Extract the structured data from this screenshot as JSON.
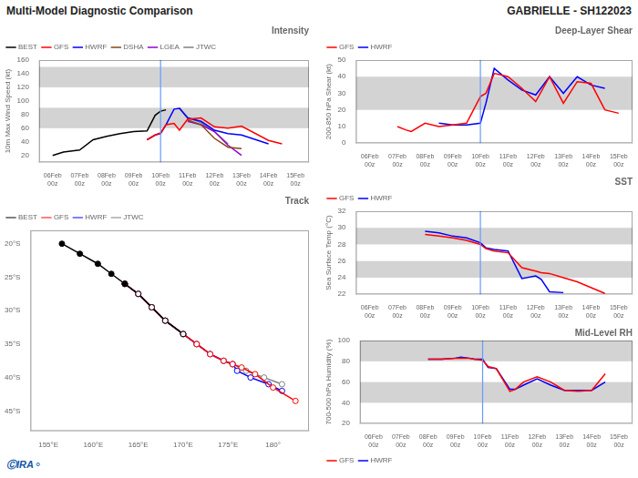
{
  "title": "Multi-Model Diagnostic Comparison",
  "subtitle": "GABRIELLE - SH122023",
  "annotations": [
    {
      "text": "ⒸIRA⚬"
    }
  ],
  "chart_data": [
    {
      "type": "line",
      "title": "Intensity",
      "y_label": "10m Max Wind Speed (kt)",
      "x": [
        0,
        0.4,
        0.8,
        1.0,
        1.5,
        2.0,
        2.5,
        3.0,
        3.5,
        3.8,
        4.0,
        4.2,
        4.5,
        4.7,
        5.0,
        5.5,
        6.0,
        6.5,
        7.0,
        8.0,
        8.5
      ],
      "xlim": [
        -0.5,
        9.5
      ],
      "xticks": [
        {
          "value": 0,
          "label": "06Feb\n00z"
        },
        {
          "value": 1,
          "label": "07Feb\n00z"
        },
        {
          "value": 2,
          "label": "08Feb\n00z"
        },
        {
          "value": 3,
          "label": "09Feb\n00z"
        },
        {
          "value": 4,
          "label": "10Feb\n00z"
        },
        {
          "value": 5,
          "label": "11Feb\n00z"
        },
        {
          "value": 6,
          "label": "12Feb\n00z"
        },
        {
          "value": 7,
          "label": "13Feb\n00z"
        },
        {
          "value": 8,
          "label": "14Feb\n00z"
        },
        {
          "value": 9,
          "label": "15Feb\n00z"
        }
      ],
      "ylim": [
        10,
        160
      ],
      "yticks": [
        20,
        40,
        60,
        80,
        100,
        120,
        140,
        160
      ],
      "grid": false,
      "legend": "upper left",
      "annotations": [
        {
          "type": "band",
          "y": [
            60,
            90
          ],
          "color": "#d3d3d3"
        },
        {
          "type": "band",
          "y": [
            120,
            150
          ],
          "color": "#d3d3d3"
        },
        {
          "type": "vline",
          "x": 4,
          "color": "#6699ff"
        }
      ],
      "series": [
        {
          "name": "BEST",
          "color": "#000000",
          "values": [
            20,
            25,
            27,
            28,
            43,
            48,
            52,
            55,
            56,
            79,
            85,
            87,
            null,
            null,
            null,
            null,
            null,
            null,
            null,
            null,
            null
          ]
        },
        {
          "name": "GFS",
          "color": "#ff0000",
          "values": [
            null,
            null,
            null,
            null,
            null,
            null,
            null,
            null,
            43,
            50,
            53,
            65,
            67,
            57,
            73,
            75,
            62,
            60,
            63,
            42,
            37
          ]
        },
        {
          "name": "HWRF",
          "color": "#0000ff",
          "values": [
            null,
            null,
            null,
            null,
            null,
            null,
            null,
            null,
            43,
            50,
            52,
            65,
            88,
            89,
            75,
            70,
            57,
            52,
            50,
            37,
            null
          ]
        },
        {
          "name": "DSHA",
          "color": "#8B4513",
          "values": [
            null,
            null,
            null,
            null,
            null,
            null,
            null,
            null,
            null,
            null,
            null,
            null,
            null,
            null,
            72,
            65,
            45,
            32,
            30,
            null,
            null
          ]
        },
        {
          "name": "LGEA",
          "color": "#9400D3",
          "values": [
            null,
            null,
            null,
            null,
            null,
            null,
            null,
            null,
            null,
            null,
            null,
            null,
            null,
            null,
            70,
            65,
            55,
            35,
            20,
            null,
            null
          ]
        },
        {
          "name": "JTWC",
          "color": "#808080",
          "values": [
            null,
            null,
            null,
            null,
            null,
            null,
            null,
            null,
            null,
            null,
            null,
            null,
            null,
            90,
            76,
            68,
            55,
            37,
            null,
            null,
            null
          ]
        }
      ]
    },
    {
      "type": "scatter",
      "title": "Track",
      "xlim": [
        153,
        184
      ],
      "xticks": [
        {
          "value": 155,
          "label": "155°E"
        },
        {
          "value": 160,
          "label": "160°E"
        },
        {
          "value": 165,
          "label": "165°E"
        },
        {
          "value": 170,
          "label": "170°E"
        },
        {
          "value": 175,
          "label": "175°E"
        },
        {
          "value": 180,
          "label": "180°"
        }
      ],
      "ylim": [
        -48,
        -18
      ],
      "yticks": [
        {
          "value": -20,
          "label": "20°S"
        },
        {
          "value": -25,
          "label": "25°S"
        },
        {
          "value": -30,
          "label": "30°S"
        },
        {
          "value": -35,
          "label": "35°S"
        },
        {
          "value": -40,
          "label": "40°S"
        },
        {
          "value": -45,
          "label": "45°S"
        }
      ],
      "grid": false,
      "legend": "upper left",
      "series": [
        {
          "name": "BEST",
          "color": "#000000",
          "marker": "circle",
          "line_style": "solid",
          "x": [
            156.5,
            158.5,
            160.5,
            162.0,
            163.5
          ],
          "y": [
            -20.0,
            -21.5,
            -23.0,
            -24.5,
            -26.0
          ]
        },
        {
          "name": "BEST",
          "color": "#000000",
          "marker": "open_circle",
          "line_style": "solid",
          "x": [
            163.5,
            165.0,
            166.5,
            168.0,
            170.0
          ],
          "y": [
            -26.0,
            -27.5,
            -29.5,
            -31.5,
            -33.5
          ]
        },
        {
          "name": "GFS",
          "color": "#ff0000",
          "marker": "open_circle",
          "line_style": "solid",
          "x": [
            163.5,
            165.0,
            166.5,
            168.0,
            170.0,
            171.5,
            173.0,
            174.5,
            175.5,
            176.5,
            178.0,
            180.0,
            182.5
          ],
          "y": [
            -26.0,
            -27.5,
            -29.5,
            -31.5,
            -33.5,
            -35.0,
            -36.5,
            -37.5,
            -38.0,
            -38.5,
            -39.5,
            -41.5,
            -43.5
          ]
        },
        {
          "name": "HWRF",
          "color": "#0000ff",
          "marker": "open_circle",
          "line_style": "solid",
          "x": [
            163.5,
            165.0,
            166.5,
            168.0,
            170.0,
            171.5,
            173.0,
            174.5,
            175.5,
            176.0,
            177.5,
            179.5,
            181.0
          ],
          "y": [
            -26.0,
            -27.5,
            -29.5,
            -31.5,
            -33.5,
            -35.0,
            -36.5,
            -37.5,
            -38.0,
            -39.0,
            -40.0,
            -41.0,
            -42.0
          ]
        },
        {
          "name": "JTWC",
          "color": "#808080",
          "marker": "open_circle",
          "line_style": "solid",
          "x": [
            163.5,
            165.0,
            166.5,
            168.0,
            170.0,
            171.5,
            173.0,
            174.5,
            175.5,
            177.0,
            179.0,
            181.0
          ],
          "y": [
            -26.0,
            -27.5,
            -29.5,
            -31.5,
            -33.5,
            -35.0,
            -36.5,
            -37.5,
            -38.0,
            -39.0,
            -40.0,
            -41.0
          ]
        }
      ]
    },
    {
      "type": "line",
      "title": "Deep-Layer Shear",
      "y_label": "200-850 hPa Shear (kt)",
      "x": [
        1.0,
        1.3,
        1.5,
        2.0,
        2.5,
        3.0,
        3.5,
        4.0,
        4.2,
        4.5,
        5.0,
        5.5,
        6.0,
        6.5,
        7.0,
        7.5,
        8.0,
        8.5,
        9.0
      ],
      "xlim": [
        -0.5,
        9.5
      ],
      "xticks": [
        {
          "value": 0,
          "label": "06Feb\n00z"
        },
        {
          "value": 1,
          "label": "07Feb\n00z"
        },
        {
          "value": 2,
          "label": "08Feb\n00z"
        },
        {
          "value": 3,
          "label": "09Feb\n00z"
        },
        {
          "value": 4,
          "label": "10Feb\n00z"
        },
        {
          "value": 5,
          "label": "11Feb\n00z"
        },
        {
          "value": 6,
          "label": "12Feb\n00z"
        },
        {
          "value": 7,
          "label": "13Feb\n00z"
        },
        {
          "value": 8,
          "label": "14Feb\n00z"
        },
        {
          "value": 9,
          "label": "15Feb\n00z"
        }
      ],
      "ylim": [
        0,
        50
      ],
      "yticks": [
        0,
        10,
        20,
        30,
        40,
        50
      ],
      "grid": false,
      "legend": "upper left",
      "annotations": [
        {
          "type": "band",
          "y": [
            20,
            40
          ],
          "color": "#d3d3d3"
        },
        {
          "type": "vline",
          "x": 4,
          "color": "#6699ff"
        }
      ],
      "series": [
        {
          "name": "GFS",
          "color": "#ff0000",
          "values": [
            10,
            8,
            7,
            12,
            10,
            11,
            12,
            28,
            30,
            42,
            40,
            33,
            25,
            40,
            24,
            37,
            36,
            20,
            18
          ]
        },
        {
          "name": "HWRF",
          "color": "#0000ff",
          "values": [
            null,
            null,
            null,
            null,
            12,
            11,
            11,
            12,
            24,
            45,
            38,
            32,
            29,
            40,
            30,
            40,
            35,
            33,
            null
          ]
        }
      ]
    },
    {
      "type": "line",
      "title": "SST",
      "y_label": "Sea Surface Temp (°C)",
      "x": [
        0.0,
        0.5,
        1.0,
        1.5,
        2.0,
        2.5,
        3.0,
        3.5,
        4.0,
        4.2,
        4.5,
        5.0,
        5.5,
        6.0,
        6.2,
        6.5,
        7.0,
        7.5,
        8.5
      ],
      "xlim": [
        -0.5,
        9.5
      ],
      "xticks": [
        {
          "value": 0,
          "label": "06Feb\n00z"
        },
        {
          "value": 1,
          "label": "07Feb\n00z"
        },
        {
          "value": 2,
          "label": "08Feb\n00z"
        },
        {
          "value": 3,
          "label": "09Feb\n00z"
        },
        {
          "value": 4,
          "label": "10Feb\n00z"
        },
        {
          "value": 5,
          "label": "11Feb\n00z"
        },
        {
          "value": 6,
          "label": "12Feb\n00z"
        },
        {
          "value": 7,
          "label": "13Feb\n00z"
        },
        {
          "value": 8,
          "label": "14Feb\n00z"
        },
        {
          "value": 9,
          "label": "15Feb\n00z"
        }
      ],
      "ylim": [
        22,
        32
      ],
      "yticks": [
        22,
        24,
        26,
        28,
        30,
        32
      ],
      "grid": false,
      "legend": "upper left",
      "annotations": [
        {
          "type": "band",
          "y": [
            24,
            26
          ],
          "color": "#d3d3d3"
        },
        {
          "type": "band",
          "y": [
            28,
            30
          ],
          "color": "#d3d3d3"
        },
        {
          "type": "vline",
          "x": 4,
          "color": "#6699ff"
        }
      ],
      "series": [
        {
          "name": "GFS",
          "color": "#ff0000",
          "values": [
            null,
            null,
            null,
            null,
            29.2,
            29.0,
            28.8,
            28.5,
            28.0,
            27.5,
            27.2,
            27.0,
            25.2,
            24.8,
            24.6,
            24.5,
            24.0,
            23.5,
            22.1
          ]
        },
        {
          "name": "HWRF",
          "color": "#0000ff",
          "values": [
            null,
            null,
            null,
            null,
            29.6,
            29.4,
            29.0,
            28.8,
            28.2,
            27.6,
            27.4,
            27.2,
            23.9,
            24.2,
            23.8,
            22.3,
            22.2,
            null,
            null
          ]
        }
      ]
    },
    {
      "type": "line",
      "title": "Mid-Level RH",
      "y_label": "700-500 hPa Humidity (%)",
      "x": [
        0.0,
        0.5,
        1.0,
        1.5,
        2.0,
        2.5,
        3.0,
        3.2,
        3.5,
        3.7,
        4.0,
        4.2,
        4.5,
        5.0,
        5.2,
        5.5,
        6.0,
        6.5,
        7.0,
        7.5,
        8.0,
        8.5
      ],
      "xlim": [
        -0.5,
        9.5
      ],
      "xticks": [
        {
          "value": 0,
          "label": "06Feb\n00z"
        },
        {
          "value": 1,
          "label": "07Feb\n00z"
        },
        {
          "value": 2,
          "label": "08Feb\n00z"
        },
        {
          "value": 3,
          "label": "09Feb\n00z"
        },
        {
          "value": 4,
          "label": "10Feb\n00z"
        },
        {
          "value": 5,
          "label": "11Feb\n00z"
        },
        {
          "value": 6,
          "label": "12Feb\n00z"
        },
        {
          "value": 7,
          "label": "13Feb\n00z"
        },
        {
          "value": 8,
          "label": "14Feb\n00z"
        },
        {
          "value": 9,
          "label": "15Feb\n00z"
        }
      ],
      "ylim": [
        20,
        100
      ],
      "yticks": [
        20,
        40,
        60,
        80,
        100
      ],
      "grid": false,
      "legend": "lower left",
      "annotations": [
        {
          "type": "band",
          "y": [
            40,
            60
          ],
          "color": "#d3d3d3"
        },
        {
          "type": "band",
          "y": [
            80,
            100
          ],
          "color": "#d3d3d3"
        },
        {
          "type": "vline",
          "x": 4,
          "color": "#6699ff"
        }
      ],
      "series": [
        {
          "name": "GFS",
          "color": "#ff0000",
          "values": [
            null,
            null,
            null,
            null,
            82,
            82,
            83,
            83,
            83,
            82,
            81,
            75,
            73,
            51,
            53,
            60,
            65,
            60,
            52,
            51,
            52,
            68
          ]
        },
        {
          "name": "HWRF",
          "color": "#0000ff",
          "values": [
            null,
            null,
            null,
            null,
            82,
            82,
            83,
            84,
            83,
            82,
            82,
            74,
            73,
            53,
            53,
            57,
            63,
            57,
            52,
            52,
            52,
            60
          ]
        }
      ]
    }
  ]
}
